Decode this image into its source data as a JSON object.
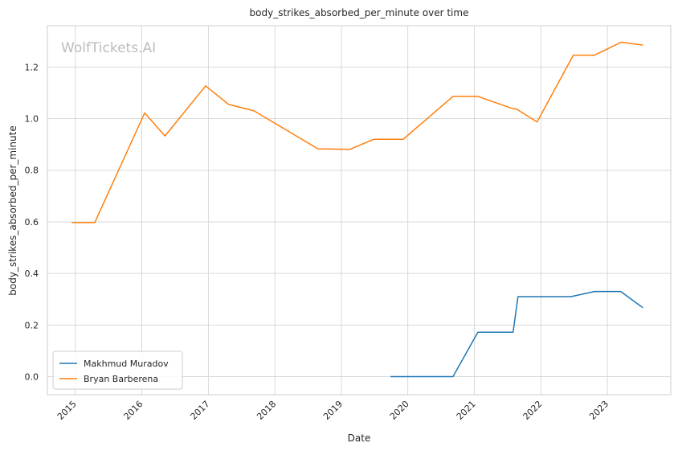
{
  "chart_data": {
    "type": "line",
    "title": "body_strikes_absorbed_per_minute over time",
    "xlabel": "Date",
    "ylabel": "body_strikes_absorbed_per_minute",
    "watermark": "WolfTickets.AI",
    "x_ticks": [
      "2015",
      "2016",
      "2017",
      "2018",
      "2019",
      "2020",
      "2021",
      "2022",
      "2023"
    ],
    "y_ticks": [
      "0.0",
      "0.2",
      "0.4",
      "0.6",
      "0.8",
      "1.0",
      "1.2"
    ],
    "xlim": [
      "2014-08-01",
      "2023-12-15"
    ],
    "ylim": [
      -0.07,
      1.36
    ],
    "grid": true,
    "legend": "lower-left",
    "series": [
      {
        "name": "Makhmud Muradov",
        "color": "#1f77b4",
        "points": [
          [
            "2019-09-28",
            0.0
          ],
          [
            "2020-09-05",
            0.0
          ],
          [
            "2021-01-20",
            0.172
          ],
          [
            "2021-08-01",
            0.172
          ],
          [
            "2021-08-28",
            0.31
          ],
          [
            "2022-06-15",
            0.31
          ],
          [
            "2022-10-22",
            0.33
          ],
          [
            "2023-03-15",
            0.33
          ],
          [
            "2023-07-15",
            0.267
          ]
        ]
      },
      {
        "name": "Bryan Barberena",
        "color": "#ff7f0e",
        "points": [
          [
            "2014-12-13",
            0.597
          ],
          [
            "2015-04-18",
            0.597
          ],
          [
            "2016-01-17",
            1.022
          ],
          [
            "2016-05-08",
            0.933
          ],
          [
            "2016-12-17",
            1.127
          ],
          [
            "2017-04-22",
            1.055
          ],
          [
            "2017-09-09",
            1.03
          ],
          [
            "2018-08-25",
            0.883
          ],
          [
            "2019-02-17",
            0.881
          ],
          [
            "2019-06-29",
            0.92
          ],
          [
            "2019-12-07",
            0.92
          ],
          [
            "2020-09-05",
            1.086
          ],
          [
            "2021-01-20",
            1.086
          ],
          [
            "2021-07-24",
            1.04
          ],
          [
            "2021-08-21",
            1.037
          ],
          [
            "2021-12-11",
            0.987
          ],
          [
            "2022-06-28",
            1.246
          ],
          [
            "2022-10-22",
            1.246
          ],
          [
            "2023-03-18",
            1.296
          ],
          [
            "2023-07-15",
            1.285
          ]
        ]
      }
    ]
  }
}
